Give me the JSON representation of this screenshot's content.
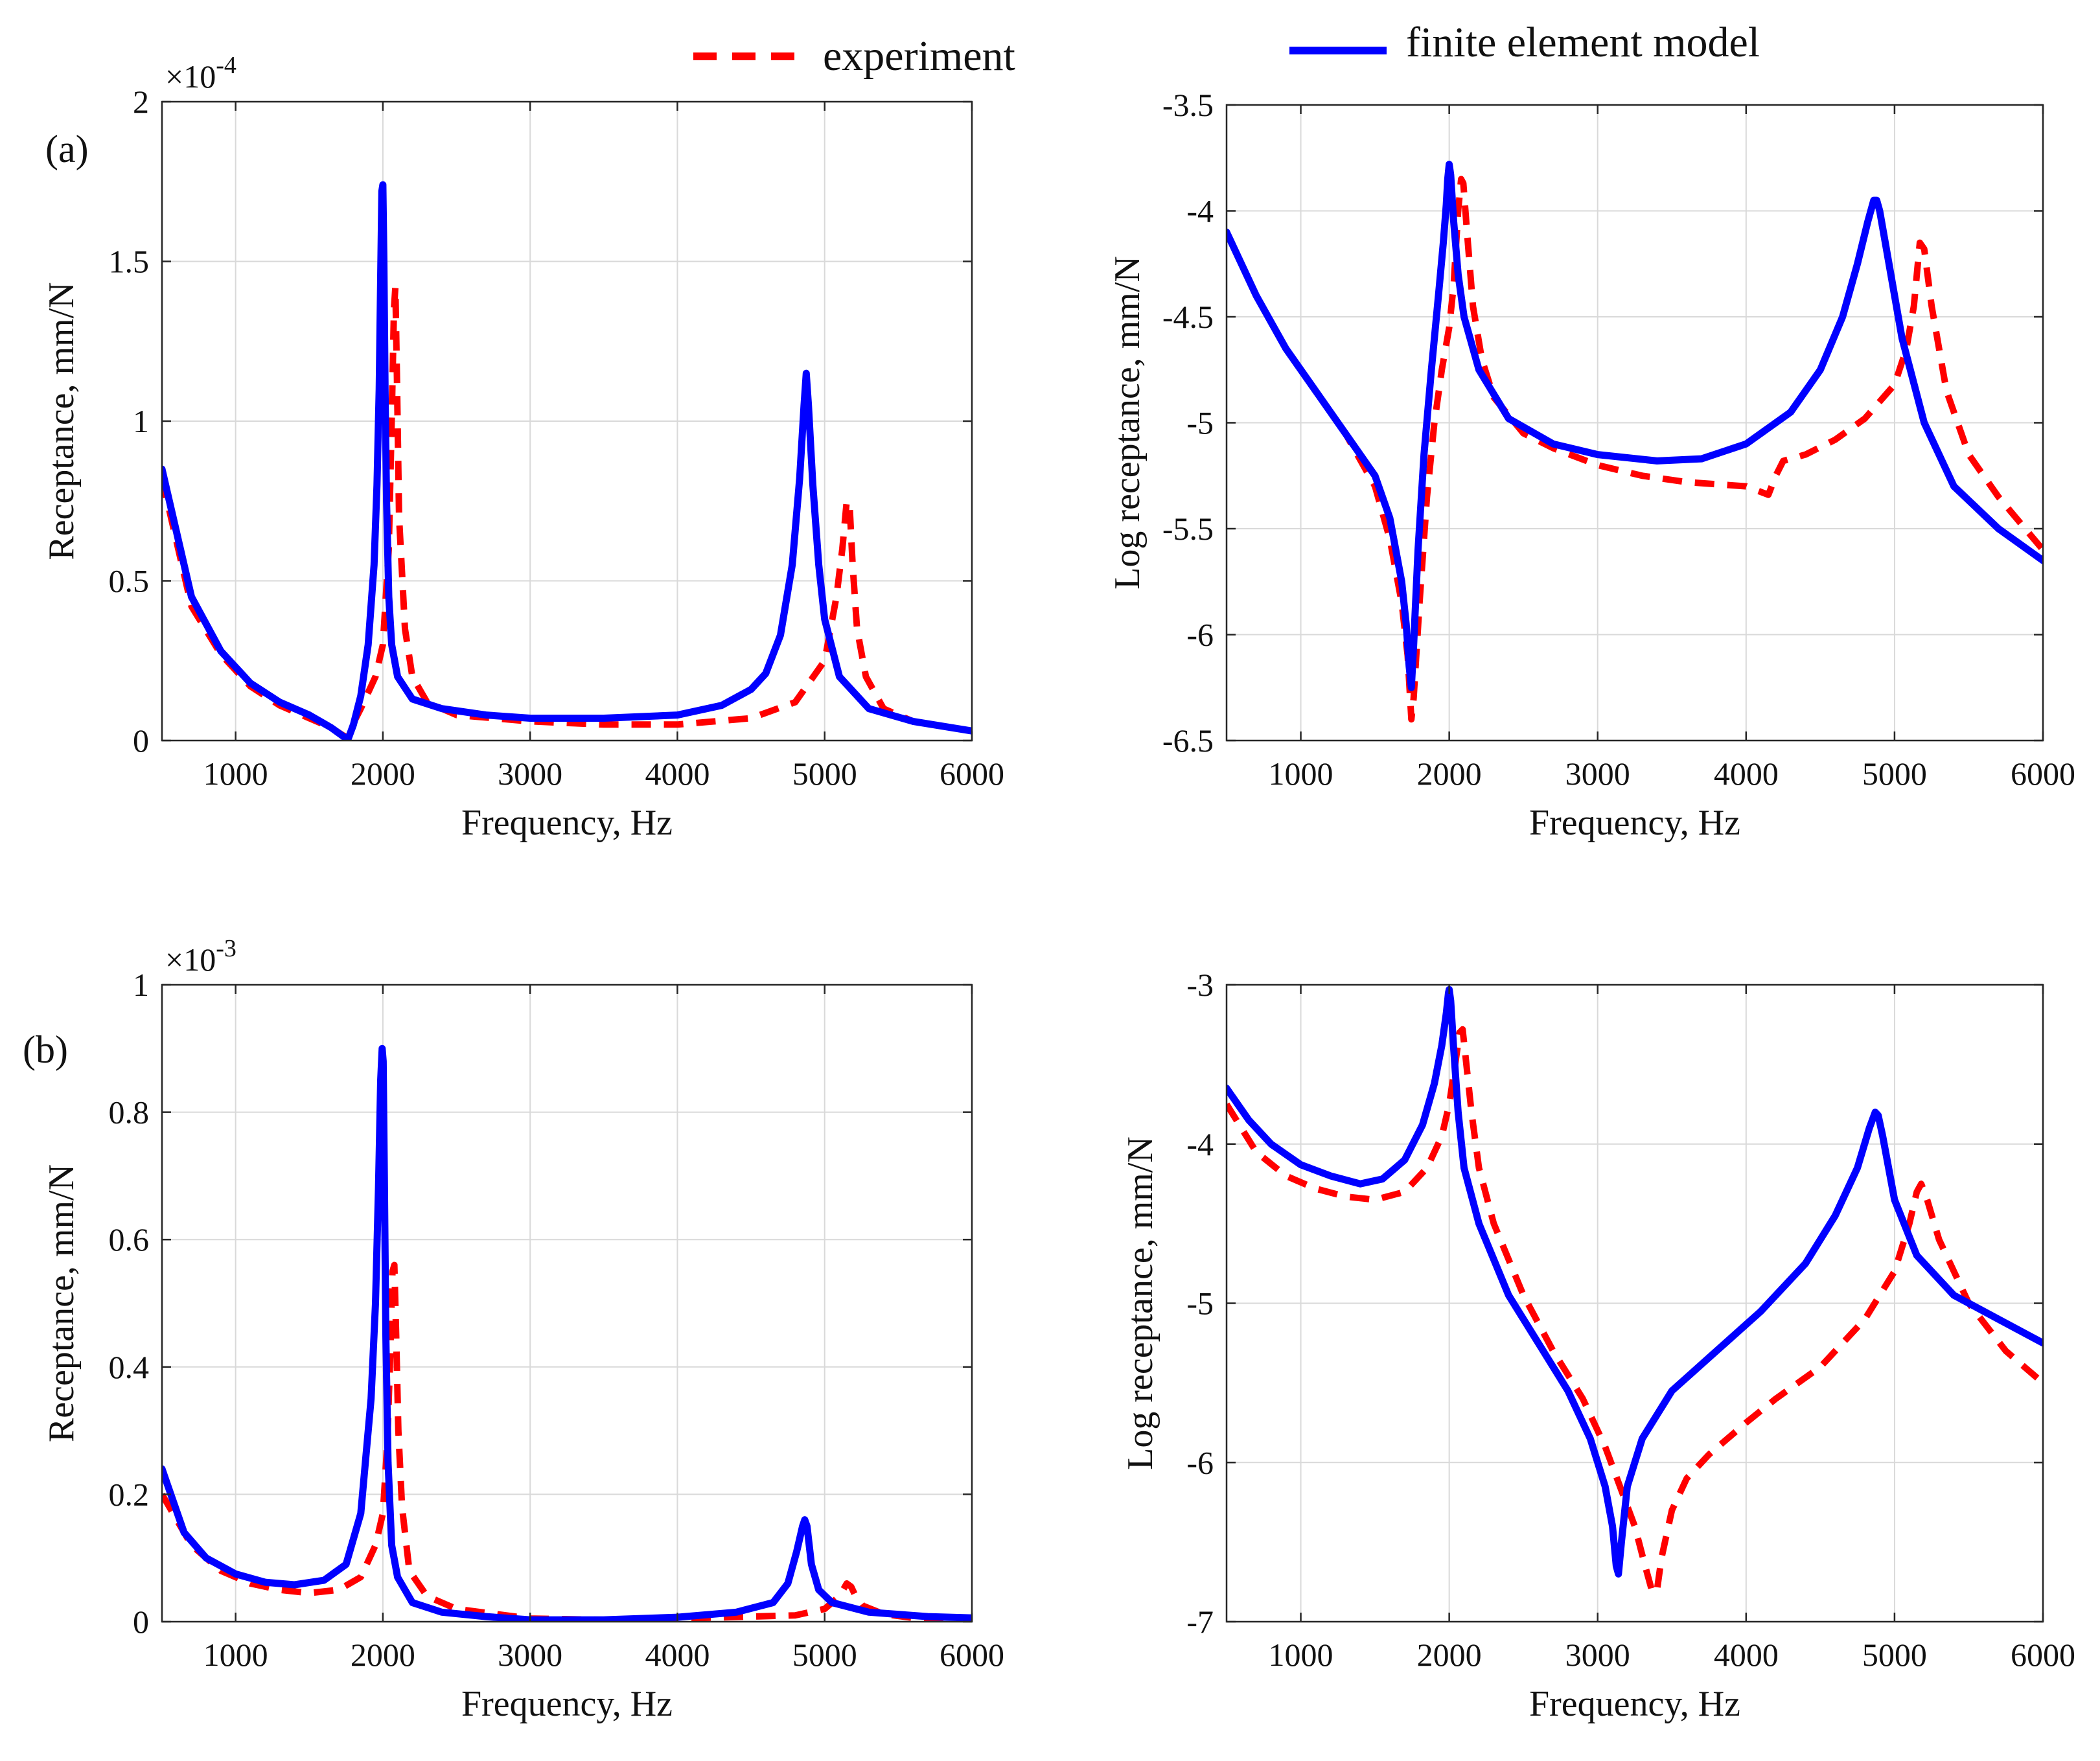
{
  "legend": [
    {
      "label": "experiment",
      "color": "#ff0000",
      "dash": true
    },
    {
      "label": "finite element model",
      "color": "#0000ff",
      "dash": false
    }
  ],
  "panel_labels": [
    "(a)",
    "(b)"
  ],
  "chart_data": [
    {
      "type": "line",
      "title": "",
      "xlabel": "Frequency, Hz",
      "ylabel": "Receptance, mm/N",
      "multiplier": "×10^-4",
      "multiplier_base": "×10",
      "multiplier_exp": "-4",
      "xlim": [
        500,
        6000
      ],
      "ylim": [
        0,
        2
      ],
      "xticks": [
        1000,
        2000,
        3000,
        4000,
        5000,
        6000
      ],
      "yticks": [
        0,
        0.5,
        1,
        1.5,
        2
      ],
      "ytick_labels": [
        "0",
        "0.5",
        "1",
        "1.5",
        "2"
      ],
      "series": [
        {
          "name": "experiment",
          "x": [
            500,
            700,
            900,
            1100,
            1300,
            1500,
            1650,
            1750,
            1850,
            1950,
            2000,
            2040,
            2060,
            2075,
            2085,
            2095,
            2110,
            2150,
            2200,
            2300,
            2500,
            3000,
            3500,
            4000,
            4500,
            4800,
            5000,
            5080,
            5120,
            5150,
            5170,
            5190,
            5220,
            5280,
            5400,
            5600,
            6000
          ],
          "y": [
            0.82,
            0.42,
            0.27,
            0.17,
            0.11,
            0.07,
            0.04,
            0.01,
            0.1,
            0.2,
            0.3,
            0.6,
            1.0,
            1.35,
            1.42,
            1.15,
            0.7,
            0.35,
            0.2,
            0.12,
            0.08,
            0.06,
            0.05,
            0.05,
            0.07,
            0.12,
            0.25,
            0.45,
            0.6,
            0.75,
            0.73,
            0.55,
            0.35,
            0.2,
            0.1,
            0.06,
            0.03
          ]
        },
        {
          "name": "finite element model",
          "x": [
            500,
            700,
            900,
            1100,
            1300,
            1500,
            1650,
            1740,
            1760,
            1800,
            1850,
            1900,
            1940,
            1960,
            1975,
            1985,
            1993,
            2000,
            2007,
            2015,
            2025,
            2040,
            2060,
            2100,
            2200,
            2400,
            2700,
            3000,
            3500,
            4000,
            4300,
            4500,
            4600,
            4700,
            4780,
            4830,
            4860,
            4875,
            4890,
            4920,
            4960,
            5000,
            5100,
            5300,
            5600,
            6000
          ],
          "y": [
            0.85,
            0.45,
            0.28,
            0.18,
            0.12,
            0.08,
            0.04,
            0.01,
            0.0,
            0.05,
            0.14,
            0.3,
            0.55,
            0.8,
            1.1,
            1.45,
            1.72,
            1.74,
            1.5,
            1.1,
            0.75,
            0.45,
            0.3,
            0.2,
            0.13,
            0.1,
            0.08,
            0.07,
            0.07,
            0.08,
            0.11,
            0.16,
            0.21,
            0.33,
            0.55,
            0.82,
            1.05,
            1.15,
            1.05,
            0.8,
            0.55,
            0.38,
            0.2,
            0.1,
            0.06,
            0.03
          ]
        }
      ]
    },
    {
      "type": "line",
      "title": "",
      "xlabel": "Frequency, Hz",
      "ylabel": "Log receptance, mm/N",
      "xlim": [
        500,
        6000
      ],
      "ylim": [
        -6.5,
        -3.5
      ],
      "xticks": [
        1000,
        2000,
        3000,
        4000,
        5000,
        6000
      ],
      "yticks": [
        -6.5,
        -6,
        -5.5,
        -5,
        -4.5,
        -4,
        -3.5
      ],
      "ytick_labels": [
        "-6.5",
        "-6",
        "-5.5",
        "-5",
        "-4.5",
        "-4",
        "-3.5"
      ],
      "series": [
        {
          "name": "experiment",
          "x": [
            500,
            700,
            900,
            1100,
            1300,
            1500,
            1600,
            1680,
            1720,
            1745,
            1760,
            1800,
            1850,
            1900,
            1950,
            2000,
            2030,
            2060,
            2080,
            2095,
            2120,
            2160,
            2220,
            2300,
            2500,
            2700,
            3000,
            3300,
            3600,
            4000,
            4150,
            4200,
            4250,
            4400,
            4600,
            4800,
            5000,
            5080,
            5130,
            5170,
            5200,
            5250,
            5350,
            5500,
            5700,
            6000
          ],
          "y": [
            -4.1,
            -4.4,
            -4.65,
            -4.85,
            -5.05,
            -5.3,
            -5.55,
            -5.85,
            -6.1,
            -6.4,
            -6.3,
            -5.85,
            -5.35,
            -5.0,
            -4.75,
            -4.55,
            -4.35,
            -4.0,
            -3.85,
            -3.87,
            -4.1,
            -4.45,
            -4.7,
            -4.88,
            -5.05,
            -5.12,
            -5.2,
            -5.25,
            -5.28,
            -5.3,
            -5.34,
            -5.25,
            -5.18,
            -5.15,
            -5.08,
            -4.98,
            -4.82,
            -4.65,
            -4.45,
            -4.15,
            -4.18,
            -4.45,
            -4.85,
            -5.15,
            -5.35,
            -5.6
          ]
        },
        {
          "name": "finite element model",
          "x": [
            500,
            700,
            900,
            1100,
            1300,
            1500,
            1600,
            1680,
            1710,
            1730,
            1745,
            1760,
            1790,
            1830,
            1880,
            1930,
            1960,
            1980,
            1990,
            2000,
            2010,
            2030,
            2060,
            2100,
            2200,
            2400,
            2700,
            3000,
            3400,
            3700,
            4000,
            4300,
            4500,
            4650,
            4750,
            4820,
            4860,
            4880,
            4900,
            4950,
            5050,
            5200,
            5400,
            5700,
            6000
          ],
          "y": [
            -4.1,
            -4.4,
            -4.65,
            -4.85,
            -5.05,
            -5.25,
            -5.45,
            -5.75,
            -5.95,
            -6.15,
            -6.25,
            -6.05,
            -5.6,
            -5.15,
            -4.75,
            -4.38,
            -4.15,
            -3.97,
            -3.85,
            -3.78,
            -3.83,
            -4.05,
            -4.3,
            -4.5,
            -4.75,
            -4.98,
            -5.1,
            -5.15,
            -5.18,
            -5.17,
            -5.1,
            -4.95,
            -4.75,
            -4.5,
            -4.25,
            -4.05,
            -3.95,
            -3.95,
            -4.0,
            -4.2,
            -4.6,
            -5.0,
            -5.3,
            -5.5,
            -5.65
          ]
        }
      ]
    },
    {
      "type": "line",
      "title": "",
      "xlabel": "Frequency, Hz",
      "ylabel": "Receptance, mm/N",
      "multiplier": "×10^-3",
      "multiplier_base": "×10",
      "multiplier_exp": "-3",
      "xlim": [
        500,
        6000
      ],
      "ylim": [
        0,
        1
      ],
      "xticks": [
        1000,
        2000,
        3000,
        4000,
        5000,
        6000
      ],
      "yticks": [
        0,
        0.2,
        0.4,
        0.6,
        0.8,
        1
      ],
      "ytick_labels": [
        "0",
        "0.2",
        "0.4",
        "0.6",
        "0.8",
        "1"
      ],
      "series": [
        {
          "name": "experiment",
          "x": [
            500,
            700,
            900,
            1100,
            1300,
            1500,
            1700,
            1850,
            1950,
            2000,
            2030,
            2050,
            2065,
            2078,
            2090,
            2105,
            2130,
            2180,
            2300,
            2500,
            3000,
            3500,
            4000,
            4500,
            4800,
            5000,
            5100,
            5150,
            5180,
            5210,
            5260,
            5400,
            5600,
            6000
          ],
          "y": [
            0.2,
            0.12,
            0.08,
            0.06,
            0.05,
            0.045,
            0.05,
            0.07,
            0.12,
            0.17,
            0.28,
            0.42,
            0.55,
            0.56,
            0.45,
            0.3,
            0.18,
            0.08,
            0.04,
            0.02,
            0.005,
            0.003,
            0.005,
            0.008,
            0.01,
            0.02,
            0.04,
            0.06,
            0.055,
            0.04,
            0.025,
            0.012,
            0.006,
            0.003
          ]
        },
        {
          "name": "finite element model",
          "x": [
            500,
            650,
            800,
            1000,
            1200,
            1400,
            1600,
            1750,
            1850,
            1920,
            1950,
            1970,
            1985,
            1995,
            2002,
            2010,
            2020,
            2035,
            2060,
            2100,
            2200,
            2400,
            2700,
            3000,
            3500,
            4000,
            4400,
            4650,
            4750,
            4810,
            4850,
            4865,
            4880,
            4910,
            4960,
            5050,
            5300,
            5700,
            6000
          ],
          "y": [
            0.24,
            0.14,
            0.1,
            0.075,
            0.062,
            0.058,
            0.065,
            0.09,
            0.17,
            0.35,
            0.5,
            0.68,
            0.85,
            0.9,
            0.88,
            0.7,
            0.45,
            0.25,
            0.12,
            0.07,
            0.03,
            0.015,
            0.008,
            0.003,
            0.003,
            0.007,
            0.015,
            0.03,
            0.06,
            0.11,
            0.15,
            0.16,
            0.15,
            0.09,
            0.05,
            0.03,
            0.015,
            0.008,
            0.006
          ]
        }
      ]
    },
    {
      "type": "line",
      "title": "",
      "xlabel": "Frequency, Hz",
      "ylabel": "Log receptance, mm/N",
      "xlim": [
        500,
        6000
      ],
      "ylim": [
        -7,
        -3
      ],
      "xticks": [
        1000,
        2000,
        3000,
        4000,
        5000,
        6000
      ],
      "yticks": [
        -7,
        -6,
        -5,
        -4,
        -3
      ],
      "ytick_labels": [
        "-7",
        "-6",
        "-5",
        "-4",
        "-3"
      ],
      "series": [
        {
          "name": "experiment",
          "x": [
            500,
            700,
            900,
            1100,
            1300,
            1500,
            1700,
            1850,
            1950,
            2000,
            2040,
            2070,
            2090,
            2110,
            2150,
            2200,
            2300,
            2500,
            2700,
            2900,
            3050,
            3150,
            3250,
            3320,
            3370,
            3400,
            3430,
            3500,
            3600,
            3750,
            4000,
            4200,
            4500,
            4800,
            5000,
            5100,
            5150,
            5180,
            5220,
            5300,
            5500,
            5750,
            6000
          ],
          "y": [
            -3.75,
            -4.05,
            -4.2,
            -4.28,
            -4.33,
            -4.35,
            -4.3,
            -4.15,
            -3.95,
            -3.75,
            -3.5,
            -3.3,
            -3.28,
            -3.45,
            -3.8,
            -4.15,
            -4.5,
            -4.95,
            -5.3,
            -5.6,
            -5.9,
            -6.15,
            -6.4,
            -6.65,
            -6.82,
            -6.8,
            -6.6,
            -6.3,
            -6.1,
            -5.95,
            -5.75,
            -5.6,
            -5.4,
            -5.1,
            -4.8,
            -4.5,
            -4.3,
            -4.25,
            -4.35,
            -4.6,
            -5.0,
            -5.3,
            -5.5
          ]
        },
        {
          "name": "finite element model",
          "x": [
            500,
            650,
            800,
            1000,
            1200,
            1400,
            1550,
            1700,
            1820,
            1900,
            1950,
            1980,
            1995,
            2000,
            2010,
            2030,
            2060,
            2100,
            2200,
            2400,
            2600,
            2800,
            2950,
            3050,
            3100,
            3125,
            3140,
            3160,
            3200,
            3300,
            3500,
            3800,
            4100,
            4400,
            4600,
            4750,
            4830,
            4870,
            4890,
            4920,
            5000,
            5150,
            5400,
            5700,
            6000
          ],
          "y": [
            -3.65,
            -3.85,
            -4.0,
            -4.13,
            -4.2,
            -4.25,
            -4.22,
            -4.1,
            -3.88,
            -3.62,
            -3.38,
            -3.18,
            -3.05,
            -3.03,
            -3.1,
            -3.4,
            -3.8,
            -4.15,
            -4.5,
            -4.95,
            -5.25,
            -5.55,
            -5.85,
            -6.15,
            -6.4,
            -6.65,
            -6.7,
            -6.5,
            -6.15,
            -5.85,
            -5.55,
            -5.3,
            -5.05,
            -4.75,
            -4.45,
            -4.15,
            -3.9,
            -3.8,
            -3.82,
            -3.95,
            -4.35,
            -4.7,
            -4.95,
            -5.1,
            -5.25
          ]
        }
      ]
    }
  ]
}
